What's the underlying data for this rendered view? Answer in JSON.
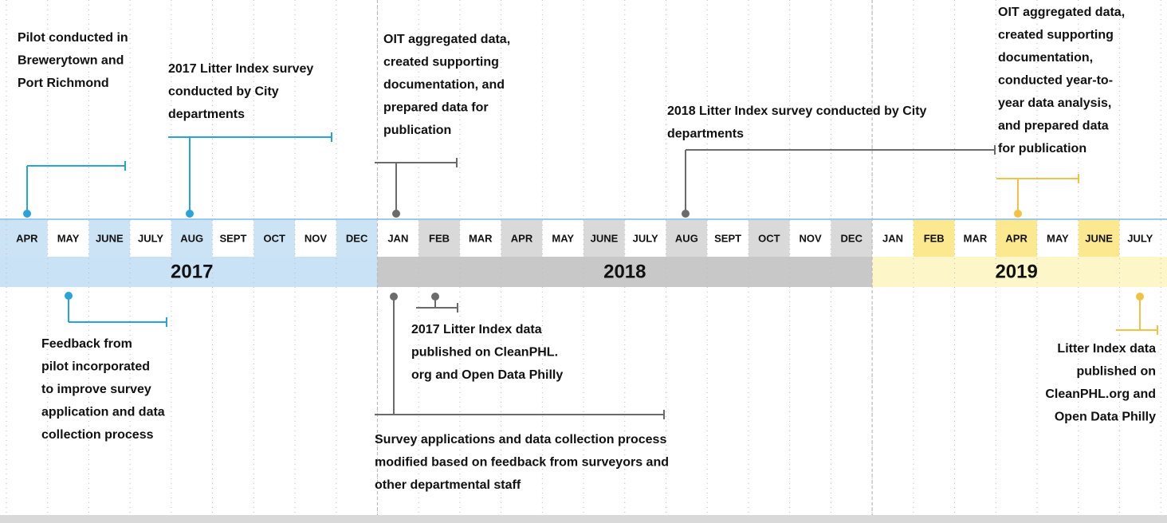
{
  "years": [
    {
      "label": "2017",
      "months": [
        "APR",
        "MAY",
        "JUNE",
        "JULY",
        "AUG",
        "SEPT",
        "OCT",
        "NOV",
        "DEC"
      ]
    },
    {
      "label": "2018",
      "months": [
        "JAN",
        "FEB",
        "MAR",
        "APR",
        "MAY",
        "JUNE",
        "JULY",
        "AUG",
        "SEPT",
        "OCT",
        "NOV",
        "DEC"
      ]
    },
    {
      "label": "2019",
      "months": [
        "JAN",
        "FEB",
        "MAR",
        "APR",
        "MAY",
        "JUNE",
        "JULY"
      ]
    }
  ],
  "events": [
    {
      "lines": [
        "Pilot conducted in",
        "Brewerytown and",
        "Port Richmond"
      ]
    },
    {
      "lines": [
        "2017 Litter Index survey",
        "conducted by City",
        "departments"
      ]
    },
    {
      "lines": [
        "OIT aggregated data,",
        "created supporting",
        "documentation, and",
        "prepared data for",
        "publication"
      ]
    },
    {
      "lines": [
        "2018 Litter Index survey conducted by City",
        "departments"
      ]
    },
    {
      "lines": [
        "OIT aggregated data,",
        "created supporting",
        "documentation,",
        "conducted year-to-",
        "year data analysis,",
        "and prepared data",
        "for publication"
      ]
    },
    {
      "lines": [
        "Feedback from",
        "pilot incorporated",
        "to improve survey",
        "application and data",
        "collection process"
      ]
    },
    {
      "lines": [
        "2017 Litter Index data",
        "published on CleanPHL.",
        "org and Open Data Philly"
      ]
    },
    {
      "lines": [
        "Survey applications and data collection process",
        "modified based on feedback from surveyors and",
        "other departmental staff"
      ]
    },
    {
      "lines": [
        "Litter Index data",
        "published on",
        "CleanPHL.org and",
        "Open Data Philly"
      ]
    }
  ]
}
